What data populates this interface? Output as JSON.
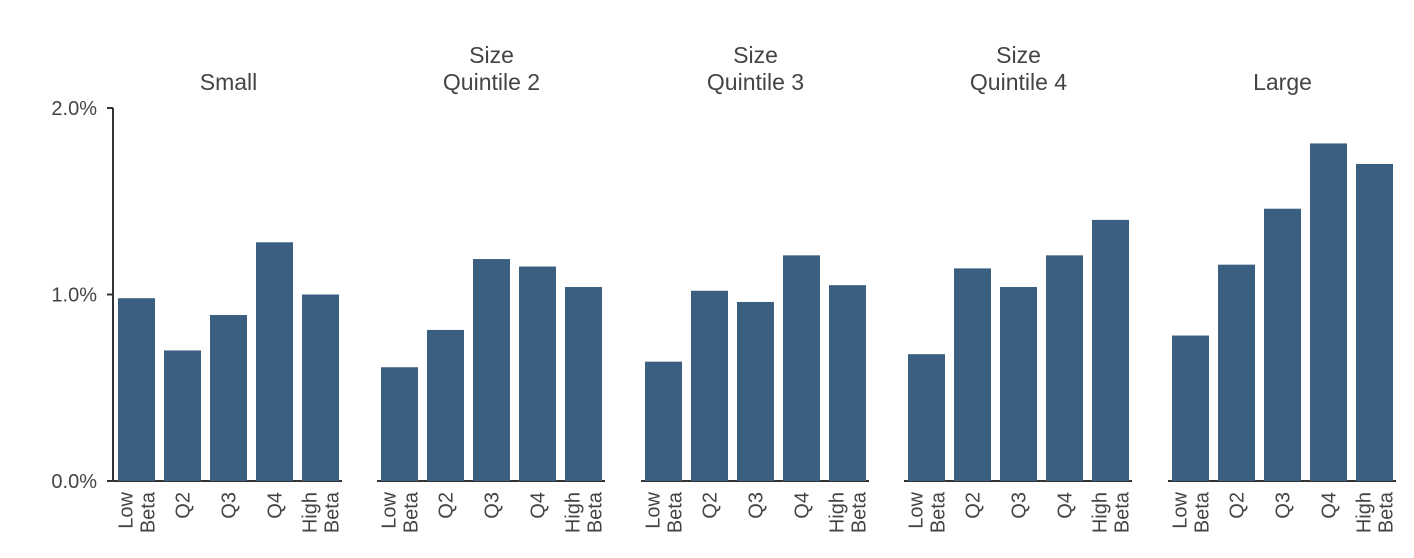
{
  "chart_data": {
    "type": "bar",
    "yaxis": {
      "range": [
        0,
        0.02
      ],
      "ticks": [
        {
          "value": 0.0,
          "label": "0.0%"
        },
        {
          "value": 0.01,
          "label": "1.0%"
        },
        {
          "value": 0.02,
          "label": "2.0%"
        }
      ]
    },
    "categories": [
      "Low Beta",
      "Q2",
      "Q3",
      "Q4",
      "High Beta"
    ],
    "category_lines": [
      [
        "Low",
        "Beta"
      ],
      [
        "Q2"
      ],
      [
        "Q3"
      ],
      [
        "Q4"
      ],
      [
        "High",
        "Beta"
      ]
    ],
    "panels": [
      {
        "title_lines": [
          "Small"
        ],
        "values": [
          0.0098,
          0.007,
          0.0089,
          0.0128,
          0.01
        ]
      },
      {
        "title_lines": [
          "Size",
          "Quintile 2"
        ],
        "values": [
          0.0061,
          0.0081,
          0.0119,
          0.0115,
          0.0104
        ]
      },
      {
        "title_lines": [
          "Size",
          "Quintile 3"
        ],
        "values": [
          0.0064,
          0.0102,
          0.0096,
          0.0121,
          0.0105
        ]
      },
      {
        "title_lines": [
          "Size",
          "Quintile 4"
        ],
        "values": [
          0.0068,
          0.0114,
          0.0104,
          0.0121,
          0.014
        ]
      },
      {
        "title_lines": [
          "Large"
        ],
        "values": [
          0.0078,
          0.0116,
          0.0146,
          0.0181,
          0.017
        ]
      }
    ],
    "bar_color": "#3a5f80",
    "grid": false,
    "legend": "none"
  }
}
